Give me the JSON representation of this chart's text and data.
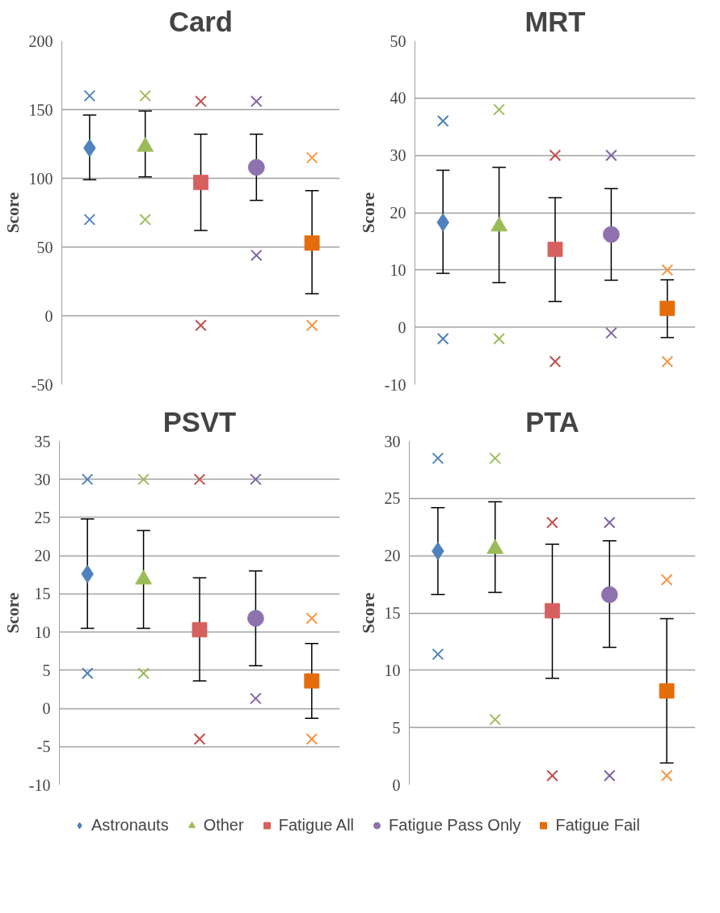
{
  "chart_data": [
    {
      "type": "scatter",
      "title": "Card",
      "ylabel": "Score",
      "categories": [
        null,
        null,
        null,
        null,
        null
      ],
      "ylim": [
        -50,
        200
      ],
      "yticks": [
        -50,
        0,
        50,
        100,
        150,
        200
      ],
      "grid": "y",
      "tick_labels": "y",
      "series": [
        {
          "color": "#4f81bd",
          "marker": "diamond",
          "values": [
            122,
            null,
            null,
            null,
            null
          ],
          "errors": [
            [
              99,
              146
            ],
            null,
            null,
            null,
            null
          ]
        },
        {
          "color": "#9bbb59",
          "marker": "triangle",
          "values": [
            null,
            123,
            null,
            null,
            null
          ],
          "errors": [
            null,
            [
              101,
              149
            ],
            null,
            null,
            null
          ]
        },
        {
          "color": "#d6605d",
          "marker": "square",
          "values": [
            null,
            null,
            97,
            null,
            null
          ],
          "errors": [
            null,
            null,
            [
              62,
              132
            ],
            null,
            null
          ]
        },
        {
          "color": "#8e72ae",
          "marker": "circle",
          "values": [
            null,
            null,
            null,
            108,
            null
          ],
          "errors": [
            null,
            null,
            null,
            [
              84,
              132
            ],
            null
          ]
        },
        {
          "color": "#e46c0a",
          "marker": "square",
          "values": [
            null,
            null,
            null,
            null,
            53
          ],
          "errors": [
            null,
            null,
            null,
            null,
            [
              16,
              91
            ]
          ]
        },
        {
          "marker": "cross",
          "colors": [
            "#4f81bd",
            "#9bbb59",
            "#c0504d",
            "#8064a2",
            "#f79646"
          ],
          "values": [
            160,
            160,
            156,
            156,
            115
          ]
        },
        {
          "marker": "cross",
          "colors": [
            "#4f81bd",
            "#9bbb59",
            "#c0504d",
            "#8064a2",
            "#f79646"
          ],
          "values": [
            70,
            70,
            -7,
            44,
            -7
          ]
        }
      ]
    },
    {
      "type": "scatter",
      "title": "MRT",
      "ylabel": "Score",
      "categories": [
        null,
        null,
        null,
        null,
        null
      ],
      "ylim": [
        -10,
        50
      ],
      "yticks": [
        -10,
        0,
        10,
        20,
        30,
        40,
        50
      ],
      "grid": "y",
      "tick_labels": "y",
      "series": [
        {
          "color": "#4f81bd",
          "marker": "diamond",
          "values": [
            18.3,
            null,
            null,
            null,
            null
          ],
          "errors": [
            [
              9.4,
              27.4
            ],
            null,
            null,
            null,
            null
          ]
        },
        {
          "color": "#9bbb59",
          "marker": "triangle",
          "values": [
            null,
            17.6,
            null,
            null,
            null
          ],
          "errors": [
            null,
            [
              7.8,
              27.9
            ],
            null,
            null,
            null
          ]
        },
        {
          "color": "#d6605d",
          "marker": "square",
          "values": [
            null,
            null,
            13.6,
            null,
            null
          ],
          "errors": [
            null,
            null,
            [
              4.5,
              22.6
            ],
            null,
            null
          ]
        },
        {
          "color": "#8e72ae",
          "marker": "circle",
          "values": [
            null,
            null,
            null,
            16.2,
            null
          ],
          "errors": [
            null,
            null,
            null,
            [
              8.2,
              24.2
            ],
            null
          ]
        },
        {
          "color": "#e46c0a",
          "marker": "square",
          "values": [
            null,
            null,
            null,
            null,
            3.3
          ],
          "errors": [
            null,
            null,
            null,
            null,
            [
              -1.8,
              8.3
            ]
          ]
        },
        {
          "marker": "cross",
          "colors": [
            "#4f81bd",
            "#9bbb59",
            "#c0504d",
            "#8064a2",
            "#f79646"
          ],
          "values": [
            36,
            38,
            30,
            30,
            10
          ]
        },
        {
          "marker": "cross",
          "colors": [
            "#4f81bd",
            "#9bbb59",
            "#c0504d",
            "#8064a2",
            "#f79646"
          ],
          "values": [
            -2,
            -2,
            -6,
            -1,
            -6
          ]
        }
      ]
    },
    {
      "type": "scatter",
      "title": "PSVT",
      "ylabel": "Score",
      "categories": [
        null,
        null,
        null,
        null,
        null
      ],
      "ylim": [
        -10,
        35
      ],
      "yticks": [
        -10,
        -5,
        0,
        5,
        10,
        15,
        20,
        25,
        30,
        35
      ],
      "grid": "y",
      "tick_labels": "y",
      "legend": "bottom",
      "series": [
        {
          "name": "Astronauts",
          "color": "#4f81bd",
          "marker": "diamond",
          "values": [
            17.6,
            null,
            null,
            null,
            null
          ],
          "errors": [
            [
              10.5,
              24.8
            ],
            null,
            null,
            null,
            null
          ]
        },
        {
          "name": "Other",
          "color": "#9bbb59",
          "marker": "triangle",
          "values": [
            null,
            16.9,
            null,
            null,
            null
          ],
          "errors": [
            null,
            [
              10.5,
              23.3
            ],
            null,
            null,
            null
          ]
        },
        {
          "name": "Fatigue All",
          "color": "#d6605d",
          "marker": "square",
          "values": [
            null,
            null,
            10.3,
            null,
            null
          ],
          "errors": [
            null,
            null,
            [
              3.6,
              17.1
            ],
            null,
            null
          ]
        },
        {
          "name": "Fatigue Pass Only",
          "color": "#8e72ae",
          "marker": "circle",
          "values": [
            null,
            null,
            null,
            11.8,
            null
          ],
          "errors": [
            null,
            null,
            null,
            [
              5.6,
              18
            ],
            null
          ]
        },
        {
          "name": "Fatigue Fail",
          "color": "#e46c0a",
          "marker": "square",
          "values": [
            null,
            null,
            null,
            null,
            3.6
          ],
          "errors": [
            null,
            null,
            null,
            null,
            [
              -1.3,
              8.5
            ]
          ]
        },
        {
          "marker": "cross",
          "colors": [
            "#4f81bd",
            "#9bbb59",
            "#c0504d",
            "#8064a2",
            "#f79646"
          ],
          "values": [
            30,
            30,
            30,
            30,
            11.8
          ]
        },
        {
          "marker": "cross",
          "colors": [
            "#4f81bd",
            "#9bbb59",
            "#c0504d",
            "#8064a2",
            "#f79646"
          ],
          "values": [
            4.6,
            4.6,
            -4,
            1.3,
            -4
          ]
        }
      ]
    },
    {
      "type": "scatter",
      "title": "PTA",
      "ylabel": "Score",
      "categories": [
        null,
        null,
        null,
        null,
        null
      ],
      "ylim": [
        0,
        30
      ],
      "yticks": [
        0,
        5,
        10,
        15,
        20,
        25,
        30
      ],
      "grid": "y",
      "tick_labels": "y",
      "series": [
        {
          "color": "#4f81bd",
          "marker": "diamond",
          "values": [
            20.4,
            null,
            null,
            null,
            null
          ],
          "errors": [
            [
              16.6,
              24.2
            ],
            null,
            null,
            null,
            null
          ]
        },
        {
          "color": "#9bbb59",
          "marker": "triangle",
          "values": [
            null,
            20.6,
            null,
            null,
            null
          ],
          "errors": [
            null,
            [
              16.8,
              24.7
            ],
            null,
            null,
            null
          ]
        },
        {
          "color": "#d6605d",
          "marker": "square",
          "values": [
            null,
            null,
            15.2,
            null,
            null
          ],
          "errors": [
            null,
            null,
            [
              9.3,
              21
            ],
            null,
            null
          ]
        },
        {
          "color": "#8e72ae",
          "marker": "circle",
          "values": [
            null,
            null,
            null,
            16.6,
            null
          ],
          "errors": [
            null,
            null,
            null,
            [
              12,
              21.3
            ],
            null
          ]
        },
        {
          "color": "#e46c0a",
          "marker": "square",
          "values": [
            null,
            null,
            null,
            null,
            8.2
          ],
          "errors": [
            null,
            null,
            null,
            null,
            [
              1.9,
              14.5
            ]
          ]
        },
        {
          "marker": "cross",
          "colors": [
            "#4f81bd",
            "#9bbb59",
            "#c0504d",
            "#8064a2",
            "#f79646"
          ],
          "values": [
            28.5,
            28.5,
            22.9,
            22.9,
            17.9
          ]
        },
        {
          "marker": "cross",
          "colors": [
            "#4f81bd",
            "#9bbb59",
            "#c0504d",
            "#8064a2",
            "#f79646"
          ],
          "values": [
            11.4,
            5.7,
            0.8,
            0.8,
            0.8
          ]
        }
      ]
    }
  ]
}
